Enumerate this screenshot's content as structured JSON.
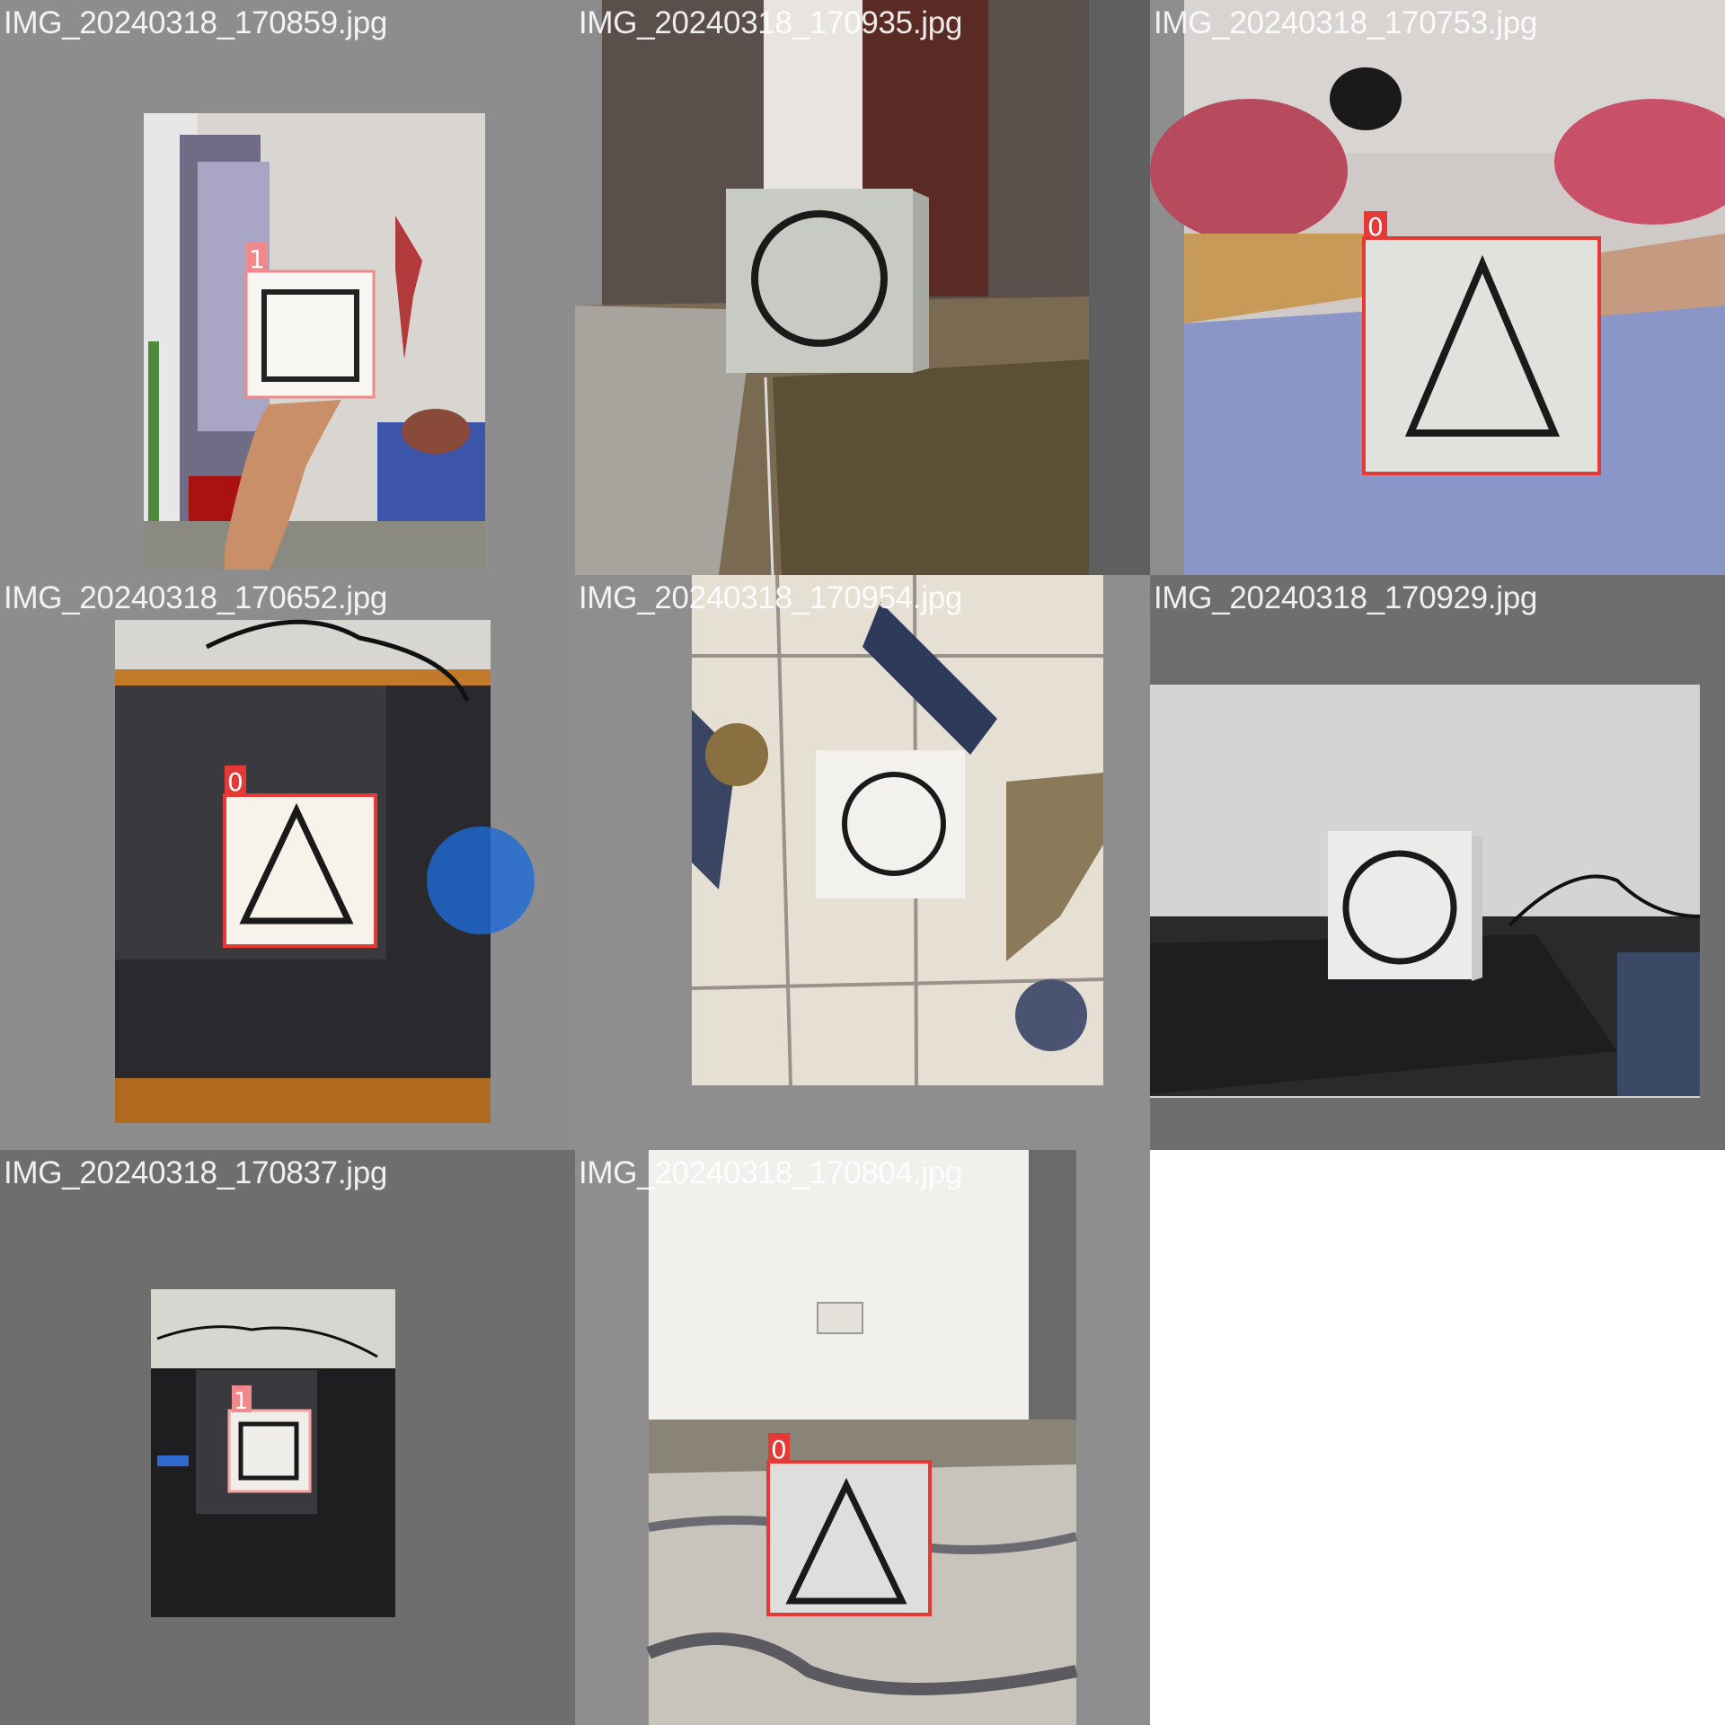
{
  "mosaic": {
    "tiles": [
      {
        "filename": "IMG_20240318_170859.jpg",
        "shape": "square",
        "label": "1",
        "label_color": "#f08a8a"
      },
      {
        "filename": "IMG_20240318_170935.jpg",
        "shape": "circle",
        "label": ""
      },
      {
        "filename": "IMG_20240318_170753.jpg",
        "shape": "triangle",
        "label": "0",
        "label_color": "#e53935"
      },
      {
        "filename": "IMG_20240318_170652.jpg",
        "shape": "triangle",
        "label": "0",
        "label_color": "#e53935"
      },
      {
        "filename": "IMG_20240318_170954.jpg",
        "shape": "circle",
        "label": ""
      },
      {
        "filename": "IMG_20240318_170929.jpg",
        "shape": "circle",
        "label": ""
      },
      {
        "filename": "IMG_20240318_170837.jpg",
        "shape": "square",
        "label": "1",
        "label_color": "#f08a8a"
      },
      {
        "filename": "IMG_20240318_170804.jpg",
        "shape": "triangle",
        "label": "0",
        "label_color": "#e53935"
      }
    ]
  }
}
